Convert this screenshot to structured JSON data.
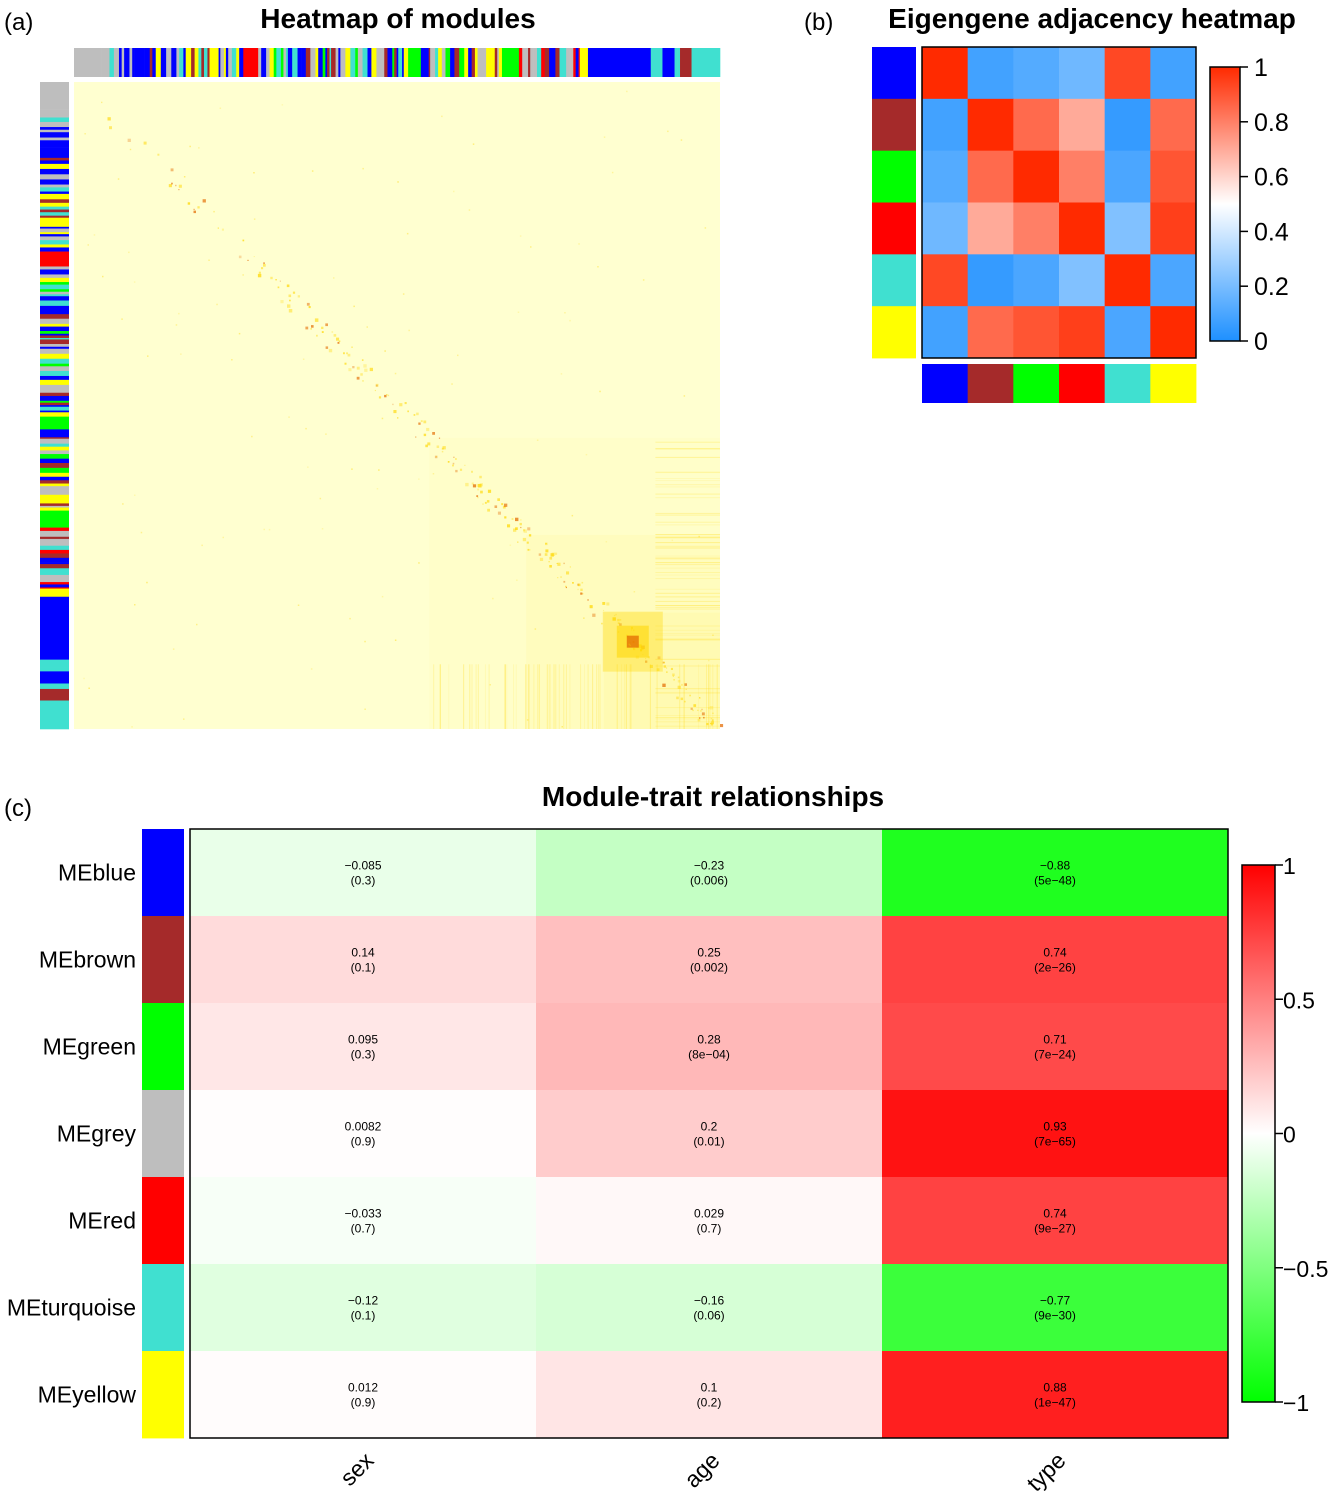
{
  "panels": {
    "a": {
      "label": "(a)"
    },
    "b": {
      "label": "(b)"
    },
    "c": {
      "label": "(c)"
    }
  },
  "module_colors": {
    "blue": "#0000FF",
    "brown": "#A52A2A",
    "green": "#00FF00",
    "grey": "#BEBEBE",
    "red": "#FF0000",
    "turquoise": "#40E0D0",
    "yellow": "#FFFF00"
  },
  "chart_data": [
    {
      "id": "tom",
      "type": "heatmap",
      "title": "Heatmap of modules",
      "description_values": "gene-gene topological overlap; mostly pale yellow with darker yellow/orange clusters toward lower-right",
      "colors": {
        "background": "#FFFFD0",
        "mid": "#FFD700",
        "high": "#E36A00"
      },
      "module_order": [
        "grey",
        "blue",
        "yellow",
        "turquoise",
        "red",
        "brown",
        "green"
      ]
    },
    {
      "id": "eigengene",
      "type": "heatmap",
      "title": "Eigengene adjacency heatmap",
      "modules": [
        "blue",
        "brown",
        "green",
        "red",
        "turquoise",
        "yellow"
      ],
      "values": [
        [
          1.0,
          0.08,
          0.12,
          0.18,
          0.93,
          0.08
        ],
        [
          0.08,
          1.0,
          0.85,
          0.7,
          0.05,
          0.85
        ],
        [
          0.12,
          0.85,
          1.0,
          0.8,
          0.1,
          0.9
        ],
        [
          0.18,
          0.7,
          0.8,
          1.0,
          0.22,
          0.95
        ],
        [
          0.93,
          0.05,
          0.1,
          0.22,
          1.0,
          0.1
        ],
        [
          0.08,
          0.85,
          0.9,
          0.95,
          0.1,
          1.0
        ]
      ],
      "legend": {
        "ticks": [
          "1",
          "0.8",
          "0.6",
          "0.4",
          "0.2",
          "0"
        ],
        "range": [
          0,
          1
        ],
        "colors": [
          "#1E90FF",
          "#FFFFFF",
          "#FF2A00"
        ]
      }
    },
    {
      "id": "module_trait",
      "type": "heatmap",
      "title": "Module-trait relationships",
      "rows": [
        "MEblue",
        "MEbrown",
        "MEgreen",
        "MEgrey",
        "MEred",
        "MEturquoise",
        "MEyellow"
      ],
      "row_colors": [
        "blue",
        "brown",
        "green",
        "grey",
        "red",
        "turquoise",
        "yellow"
      ],
      "columns": [
        "sex",
        "age",
        "type"
      ],
      "values": [
        [
          -0.085,
          -0.23,
          -0.88
        ],
        [
          0.14,
          0.25,
          0.74
        ],
        [
          0.095,
          0.28,
          0.71
        ],
        [
          0.0082,
          0.2,
          0.93
        ],
        [
          -0.033,
          0.029,
          0.74
        ],
        [
          -0.12,
          -0.16,
          -0.77
        ],
        [
          0.012,
          0.1,
          0.88
        ]
      ],
      "labels": [
        [
          "−0.085",
          "−0.23",
          "−0.88"
        ],
        [
          "0.14",
          "0.25",
          "0.74"
        ],
        [
          "0.095",
          "0.28",
          "0.71"
        ],
        [
          "0.0082",
          "0.2",
          "0.93"
        ],
        [
          "−0.033",
          "0.029",
          "0.74"
        ],
        [
          "−0.12",
          "−0.16",
          "−0.77"
        ],
        [
          "0.012",
          "0.1",
          "0.88"
        ]
      ],
      "pvalues": [
        [
          "(0.3)",
          "(0.006)",
          "(5e−48)"
        ],
        [
          "(0.1)",
          "(0.002)",
          "(2e−26)"
        ],
        [
          "(0.3)",
          "(8e−04)",
          "(7e−24)"
        ],
        [
          "(0.9)",
          "(0.01)",
          "(7e−65)"
        ],
        [
          "(0.7)",
          "(0.7)",
          "(9e−27)"
        ],
        [
          "(0.1)",
          "(0.06)",
          "(9e−30)"
        ],
        [
          "(0.9)",
          "(0.2)",
          "(1e−47)"
        ]
      ],
      "legend": {
        "ticks": [
          "1",
          "0.5",
          "0",
          "−0.5",
          "−1"
        ],
        "range": [
          -1,
          1
        ],
        "colors": [
          "#00FF00",
          "#FFFFFF",
          "#FF0000"
        ]
      }
    }
  ]
}
